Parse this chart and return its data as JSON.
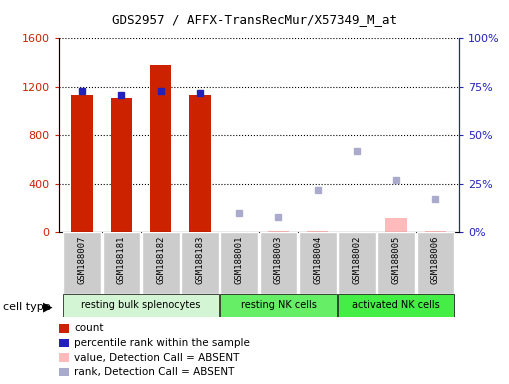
{
  "title": "GDS2957 / AFFX-TransRecMur/X57349_M_at",
  "samples": [
    "GSM188007",
    "GSM188181",
    "GSM188182",
    "GSM188183",
    "GSM188001",
    "GSM188003",
    "GSM188004",
    "GSM188002",
    "GSM188005",
    "GSM188006"
  ],
  "count_values": [
    1130,
    1110,
    1380,
    1130,
    5,
    10,
    10,
    5,
    120,
    10
  ],
  "count_absent": [
    false,
    false,
    false,
    false,
    true,
    true,
    true,
    true,
    true,
    true
  ],
  "percentile_values": [
    73,
    71,
    73,
    72,
    null,
    null,
    null,
    null,
    null,
    null
  ],
  "rank_absent_values": [
    null,
    null,
    null,
    null,
    10,
    8,
    22,
    42,
    27,
    17
  ],
  "cell_groups": [
    {
      "label": "resting bulk splenocytes",
      "start": 0,
      "end": 3,
      "color": "#d4f5d4"
    },
    {
      "label": "resting NK cells",
      "start": 4,
      "end": 6,
      "color": "#66ee66"
    },
    {
      "label": "activated NK cells",
      "start": 7,
      "end": 9,
      "color": "#44ee44"
    }
  ],
  "ylim_left": [
    0,
    1600
  ],
  "ylim_right": [
    0,
    100
  ],
  "yticks_left": [
    0,
    400,
    800,
    1200,
    1600
  ],
  "yticks_right": [
    0,
    25,
    50,
    75,
    100
  ],
  "color_red": "#cc2200",
  "color_blue": "#2222bb",
  "color_pink": "#ffbbbb",
  "color_lightblue": "#aaaacc",
  "bg_sample": "#cccccc",
  "legend_items": [
    {
      "label": "count",
      "color": "#cc2200"
    },
    {
      "label": "percentile rank within the sample",
      "color": "#2222bb"
    },
    {
      "label": "value, Detection Call = ABSENT",
      "color": "#ffbbbb"
    },
    {
      "label": "rank, Detection Call = ABSENT",
      "color": "#aaaacc"
    }
  ]
}
